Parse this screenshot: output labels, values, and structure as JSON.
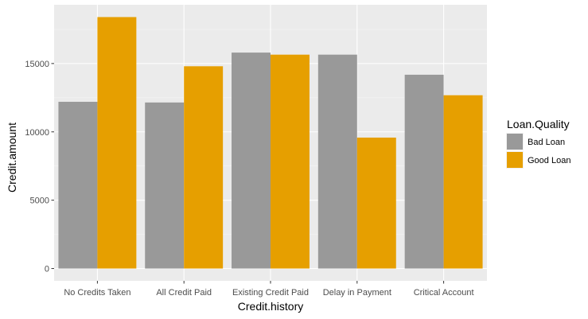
{
  "chart_data": {
    "type": "bar",
    "categories": [
      "No Credits Taken",
      "All Credit Paid",
      "Existing Credit Paid",
      "Delay in Payment",
      "Critical Account"
    ],
    "series": [
      {
        "name": "Bad Loan",
        "values": [
          12200,
          12150,
          15800,
          15650,
          14180
        ],
        "color": "#999999"
      },
      {
        "name": "Good Loan",
        "values": [
          18400,
          14800,
          15650,
          9580,
          12680
        ],
        "color": "#E69F00"
      }
    ],
    "xlabel": "Credit.history",
    "ylabel": "Credit.amount",
    "y_ticks": [
      0,
      5000,
      10000,
      15000
    ],
    "ylim": [
      -900,
      19300
    ],
    "legend_title": "Loan.Quality",
    "legend_position": "right",
    "grid": true,
    "panel_background": "#EBEBEB"
  }
}
